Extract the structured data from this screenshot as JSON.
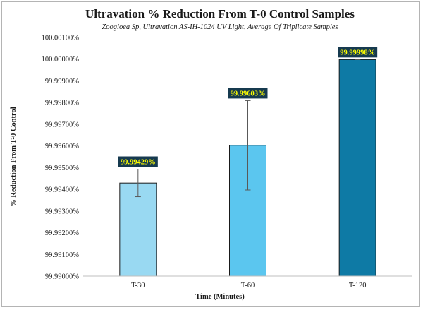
{
  "chart_data": {
    "type": "bar",
    "title": "Ultravation % Reduction From T-0 Control Samples",
    "subtitle": "Zoogloea Sp, Ultravation AS-IH-1024 UV Light, Average Of Triplicate Samples",
    "xlabel": "Time (Minutes)",
    "ylabel": "% Reduction From T-0 Control",
    "categories": [
      "T-30",
      "T-60",
      "T-120"
    ],
    "values": [
      99.99429,
      99.99603,
      99.99998
    ],
    "data_labels": [
      "99.99429%",
      "99.99603%",
      "99.99998%"
    ],
    "error_low": [
      99.99366,
      99.99397,
      99.99998
    ],
    "error_high": [
      99.99493,
      99.99809,
      99.99998
    ],
    "ylim": [
      99.99,
      100.001
    ],
    "yticks": [
      99.99,
      99.991,
      99.992,
      99.993,
      99.994,
      99.995,
      99.996,
      99.997,
      99.998,
      99.999,
      100.0,
      100.001
    ],
    "ytick_labels": [
      "99.99000%",
      "99.99100%",
      "99.99200%",
      "99.99300%",
      "99.99400%",
      "99.99500%",
      "99.99600%",
      "99.99700%",
      "99.99800%",
      "99.99900%",
      "100.00000%",
      "100.00100%"
    ],
    "bar_colors": [
      "#99d9f2",
      "#5bc6ef",
      "#0e7aa5"
    ],
    "label_bg_color": "#163a4f",
    "label_text_color": "#ffff00",
    "grid": false,
    "legend": "none"
  }
}
